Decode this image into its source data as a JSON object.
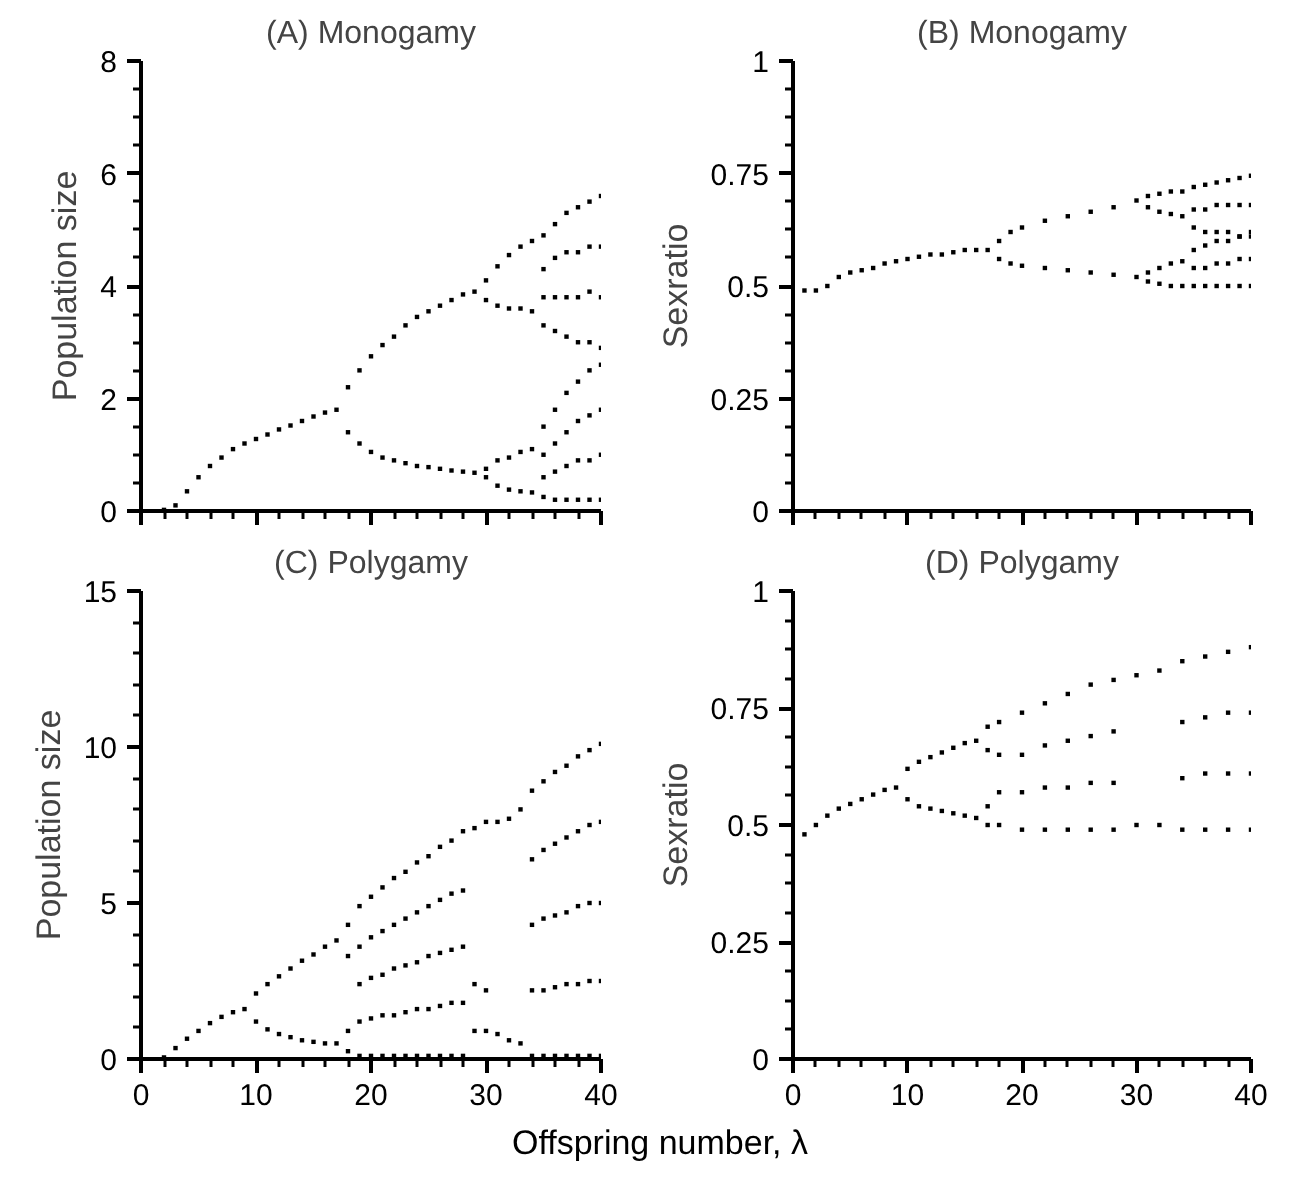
{
  "chart_data": [
    {
      "type": "scatter",
      "title": "(A) Monogamy",
      "ylabel": "Population size",
      "marker": "square",
      "grid": false,
      "tick_labels": "y",
      "xlim": [
        0,
        40
      ],
      "xticks": [
        0,
        10,
        20,
        30,
        40
      ],
      "ylim": [
        0,
        8
      ],
      "yticks": [
        0,
        2,
        4,
        6,
        8
      ],
      "series": [
        {
          "color": "#000000",
          "x": [
            2,
            3,
            4,
            5,
            6,
            7,
            8,
            9,
            10,
            11,
            12,
            13,
            14,
            15,
            16,
            17,
            18,
            19,
            20,
            21,
            22,
            23,
            24,
            25,
            26,
            27,
            28,
            29,
            18,
            19,
            20,
            21,
            22,
            23,
            24,
            25,
            26,
            27,
            28,
            29,
            30,
            31,
            32,
            33,
            34,
            30,
            31,
            32,
            33,
            34,
            30,
            31,
            32,
            33,
            34,
            30,
            31,
            32,
            33,
            34,
            35,
            35,
            35,
            35,
            35,
            35,
            35,
            35,
            36,
            36,
            36,
            36,
            36,
            36,
            36,
            36,
            37,
            37,
            37,
            37,
            37,
            37,
            37,
            37,
            38,
            38,
            38,
            38,
            38,
            38,
            38,
            38,
            39,
            39,
            39,
            39,
            39,
            39,
            39,
            39,
            40,
            40,
            40,
            40,
            40,
            40,
            40,
            40
          ],
          "values": [
            0.02,
            0.1,
            0.35,
            0.6,
            0.8,
            0.95,
            1.1,
            1.2,
            1.28,
            1.36,
            1.45,
            1.52,
            1.6,
            1.68,
            1.75,
            1.8,
            2.2,
            2.5,
            2.75,
            2.95,
            3.1,
            3.3,
            3.45,
            3.55,
            3.65,
            3.75,
            3.85,
            3.9,
            1.4,
            1.2,
            1.05,
            0.95,
            0.9,
            0.85,
            0.8,
            0.78,
            0.75,
            0.72,
            0.7,
            0.68,
            4.1,
            4.35,
            4.55,
            4.7,
            4.8,
            3.75,
            3.65,
            3.6,
            3.6,
            3.55,
            0.75,
            0.9,
            0.95,
            1.05,
            1.1,
            0.6,
            0.45,
            0.38,
            0.35,
            0.33,
            3.3,
            3.8,
            4.3,
            4.9,
            0.25,
            0.6,
            1.0,
            1.5,
            3.2,
            3.8,
            4.5,
            5.1,
            0.2,
            0.7,
            1.2,
            1.8,
            3.1,
            3.8,
            4.6,
            5.3,
            0.2,
            0.8,
            1.4,
            2.1,
            3.0,
            3.8,
            4.6,
            5.4,
            0.2,
            0.9,
            1.6,
            2.3,
            3.0,
            3.9,
            4.7,
            5.5,
            0.2,
            0.9,
            1.7,
            2.5,
            2.9,
            3.8,
            4.7,
            5.6,
            0.2,
            1.0,
            1.8,
            2.6
          ]
        }
      ]
    },
    {
      "type": "scatter",
      "title": "(B) Monogamy",
      "ylabel": "Sexratio",
      "marker": "square",
      "grid": false,
      "tick_labels": "y",
      "xlim": [
        0,
        40
      ],
      "xticks": [
        0,
        10,
        20,
        30,
        40
      ],
      "ylim": [
        0,
        1
      ],
      "yticks": [
        0,
        0.25,
        0.5,
        0.75,
        1
      ],
      "series": [
        {
          "color": "#000000",
          "x": [
            1,
            2,
            3,
            4,
            5,
            6,
            7,
            8,
            9,
            10,
            11,
            12,
            13,
            14,
            15,
            16,
            17,
            18,
            19,
            20,
            22,
            24,
            26,
            28,
            30,
            18,
            19,
            20,
            22,
            24,
            26,
            28,
            30,
            31,
            32,
            33,
            34,
            31,
            32,
            33,
            34,
            31,
            32,
            33,
            34,
            31,
            32,
            33,
            34,
            35,
            35,
            35,
            35,
            35,
            35,
            36,
            36,
            36,
            36,
            36,
            36,
            37,
            37,
            37,
            37,
            37,
            37,
            38,
            38,
            38,
            38,
            38,
            38,
            39,
            39,
            39,
            39,
            39,
            39,
            40,
            40,
            40,
            40,
            40,
            40
          ],
          "values": [
            0.49,
            0.49,
            0.5,
            0.52,
            0.53,
            0.535,
            0.54,
            0.55,
            0.555,
            0.56,
            0.565,
            0.57,
            0.57,
            0.575,
            0.58,
            0.58,
            0.58,
            0.6,
            0.62,
            0.63,
            0.645,
            0.655,
            0.665,
            0.675,
            0.69,
            0.56,
            0.55,
            0.545,
            0.54,
            0.535,
            0.53,
            0.525,
            0.52,
            0.7,
            0.705,
            0.71,
            0.71,
            0.675,
            0.665,
            0.66,
            0.655,
            0.53,
            0.54,
            0.55,
            0.555,
            0.51,
            0.505,
            0.5,
            0.5,
            0.63,
            0.67,
            0.72,
            0.5,
            0.54,
            0.58,
            0.62,
            0.67,
            0.725,
            0.5,
            0.54,
            0.59,
            0.62,
            0.68,
            0.73,
            0.5,
            0.55,
            0.6,
            0.62,
            0.68,
            0.735,
            0.5,
            0.55,
            0.6,
            0.61,
            0.68,
            0.74,
            0.5,
            0.56,
            0.61,
            0.61,
            0.68,
            0.745,
            0.5,
            0.56,
            0.62
          ]
        }
      ]
    },
    {
      "type": "scatter",
      "title": "(C) Polygamy",
      "ylabel": "Population size",
      "xlabel": "Offspring number, λ",
      "marker": "square",
      "grid": false,
      "xlim": [
        0,
        40
      ],
      "xticks": [
        0,
        10,
        20,
        30,
        40
      ],
      "ylim": [
        0,
        15
      ],
      "yticks": [
        0,
        5,
        10,
        15
      ],
      "series": [
        {
          "color": "#000000",
          "x": [
            2,
            3,
            4,
            5,
            6,
            7,
            8,
            9,
            10,
            11,
            12,
            13,
            14,
            15,
            16,
            17,
            10,
            11,
            12,
            13,
            14,
            15,
            16,
            17,
            18,
            18,
            18,
            18,
            19,
            19,
            19,
            19,
            19,
            20,
            20,
            20,
            20,
            20,
            21,
            21,
            21,
            21,
            21,
            22,
            22,
            22,
            22,
            22,
            23,
            23,
            23,
            23,
            23,
            24,
            24,
            24,
            24,
            24,
            25,
            25,
            25,
            25,
            25,
            26,
            26,
            26,
            26,
            26,
            27,
            27,
            27,
            27,
            27,
            28,
            28,
            28,
            28,
            28,
            29,
            29,
            29,
            30,
            30,
            30,
            31,
            31,
            32,
            32,
            33,
            33,
            34,
            34,
            34,
            34,
            34,
            35,
            35,
            35,
            35,
            35,
            36,
            36,
            36,
            36,
            36,
            37,
            37,
            37,
            37,
            37,
            38,
            38,
            38,
            38,
            38,
            39,
            39,
            39,
            39,
            39,
            40,
            40,
            40,
            40,
            40
          ],
          "values": [
            0.05,
            0.35,
            0.65,
            0.9,
            1.15,
            1.35,
            1.5,
            1.6,
            2.1,
            2.4,
            2.65,
            2.9,
            3.15,
            3.35,
            3.6,
            3.8,
            1.2,
            0.95,
            0.8,
            0.7,
            0.6,
            0.55,
            0.5,
            0.5,
            4.3,
            3.3,
            0.9,
            0.25,
            0.1,
            1.2,
            2.4,
            3.6,
            4.9,
            0.1,
            1.3,
            2.6,
            3.9,
            5.2,
            0.1,
            1.4,
            2.7,
            4.1,
            5.5,
            0.1,
            1.4,
            2.9,
            4.3,
            5.8,
            0.1,
            1.5,
            3.0,
            4.5,
            6.0,
            0.1,
            1.6,
            3.1,
            4.7,
            6.3,
            0.1,
            1.6,
            3.3,
            4.9,
            6.5,
            0.1,
            1.7,
            3.4,
            5.1,
            6.8,
            0.1,
            1.8,
            3.5,
            5.3,
            7.0,
            0.1,
            1.8,
            3.6,
            5.4,
            7.3,
            7.4,
            2.4,
            0.9,
            7.6,
            2.2,
            0.9,
            7.6,
            0.8,
            7.7,
            0.6,
            8.0,
            0.5,
            0.1,
            2.2,
            4.3,
            6.4,
            8.6,
            0.1,
            2.2,
            4.5,
            6.7,
            8.9,
            0.1,
            2.3,
            4.6,
            6.9,
            9.2,
            0.1,
            2.4,
            4.7,
            7.1,
            9.4,
            0.1,
            2.4,
            4.9,
            7.3,
            9.7,
            0.1,
            2.5,
            5.0,
            7.5,
            9.9,
            0.1,
            2.5,
            5.0,
            7.6,
            10.1
          ]
        }
      ]
    },
    {
      "type": "scatter",
      "title": "(D) Polygamy",
      "ylabel": "Sexratio",
      "marker": "square",
      "grid": false,
      "xlim": [
        0,
        40
      ],
      "xticks": [
        0,
        10,
        20,
        30,
        40
      ],
      "ylim": [
        0,
        1
      ],
      "yticks": [
        0,
        0.25,
        0.5,
        0.75,
        1
      ],
      "series": [
        {
          "color": "#000000",
          "x": [
            1,
            2,
            3,
            4,
            5,
            6,
            7,
            8,
            9,
            10,
            11,
            12,
            13,
            14,
            15,
            16,
            10,
            11,
            12,
            13,
            14,
            15,
            16,
            17,
            17,
            17,
            17,
            18,
            18,
            18,
            18,
            20,
            20,
            20,
            20,
            22,
            22,
            22,
            22,
            24,
            24,
            24,
            24,
            26,
            26,
            26,
            26,
            28,
            28,
            28,
            28,
            30,
            30,
            32,
            32,
            34,
            34,
            34,
            34,
            36,
            36,
            36,
            36,
            38,
            38,
            38,
            38,
            40,
            40,
            40,
            40
          ],
          "values": [
            0.48,
            0.5,
            0.52,
            0.535,
            0.545,
            0.555,
            0.565,
            0.575,
            0.58,
            0.62,
            0.635,
            0.645,
            0.655,
            0.665,
            0.675,
            0.68,
            0.555,
            0.54,
            0.535,
            0.53,
            0.525,
            0.52,
            0.515,
            0.71,
            0.66,
            0.54,
            0.5,
            0.5,
            0.57,
            0.65,
            0.72,
            0.49,
            0.57,
            0.65,
            0.74,
            0.49,
            0.58,
            0.67,
            0.76,
            0.49,
            0.58,
            0.68,
            0.78,
            0.49,
            0.59,
            0.69,
            0.8,
            0.49,
            0.59,
            0.7,
            0.81,
            0.82,
            0.5,
            0.83,
            0.5,
            0.49,
            0.6,
            0.72,
            0.85,
            0.49,
            0.61,
            0.73,
            0.86,
            0.49,
            0.61,
            0.74,
            0.87,
            0.49,
            0.61,
            0.74,
            0.88
          ]
        }
      ]
    }
  ]
}
